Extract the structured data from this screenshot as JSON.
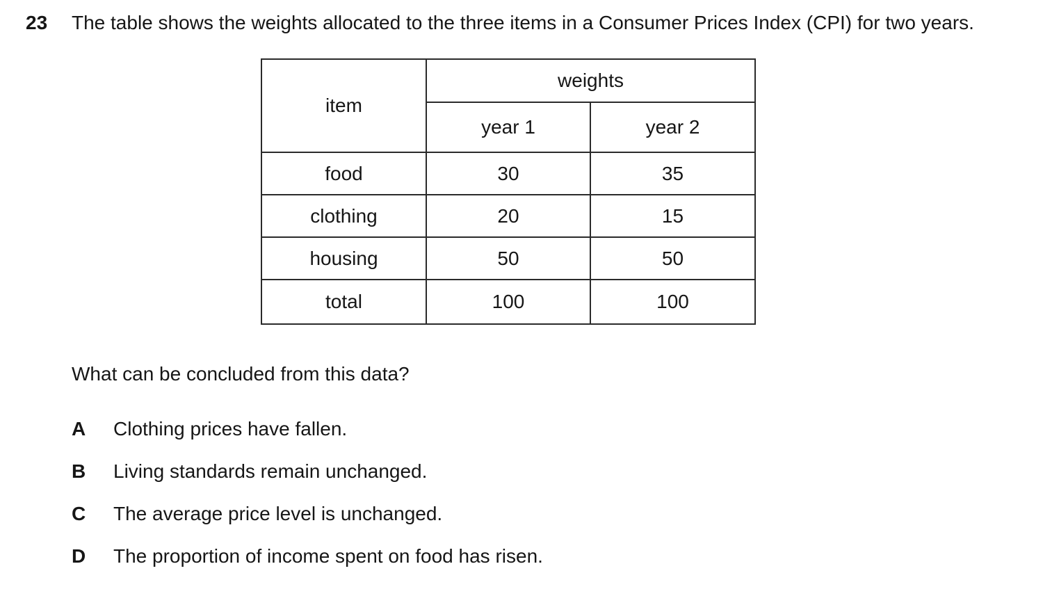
{
  "question": {
    "number": "23",
    "text": "The table shows the weights allocated to the three items in a Consumer Prices Index (CPI) for two years.",
    "prompt": "What can be concluded from this data?"
  },
  "table": {
    "headers": {
      "item": "item",
      "group": "weights",
      "year1": "year 1",
      "year2": "year 2"
    },
    "rows": [
      {
        "item": "food",
        "year1": "30",
        "year2": "35"
      },
      {
        "item": "clothing",
        "year1": "20",
        "year2": "15"
      },
      {
        "item": "housing",
        "year1": "50",
        "year2": "50"
      }
    ],
    "total_row": {
      "item": "total",
      "year1": "100",
      "year2": "100"
    }
  },
  "options": [
    {
      "letter": "A",
      "text": "Clothing prices have fallen."
    },
    {
      "letter": "B",
      "text": "Living standards remain unchanged."
    },
    {
      "letter": "C",
      "text": "The average price level is unchanged."
    },
    {
      "letter": "D",
      "text": "The proportion of income spent on food has risen."
    }
  ]
}
